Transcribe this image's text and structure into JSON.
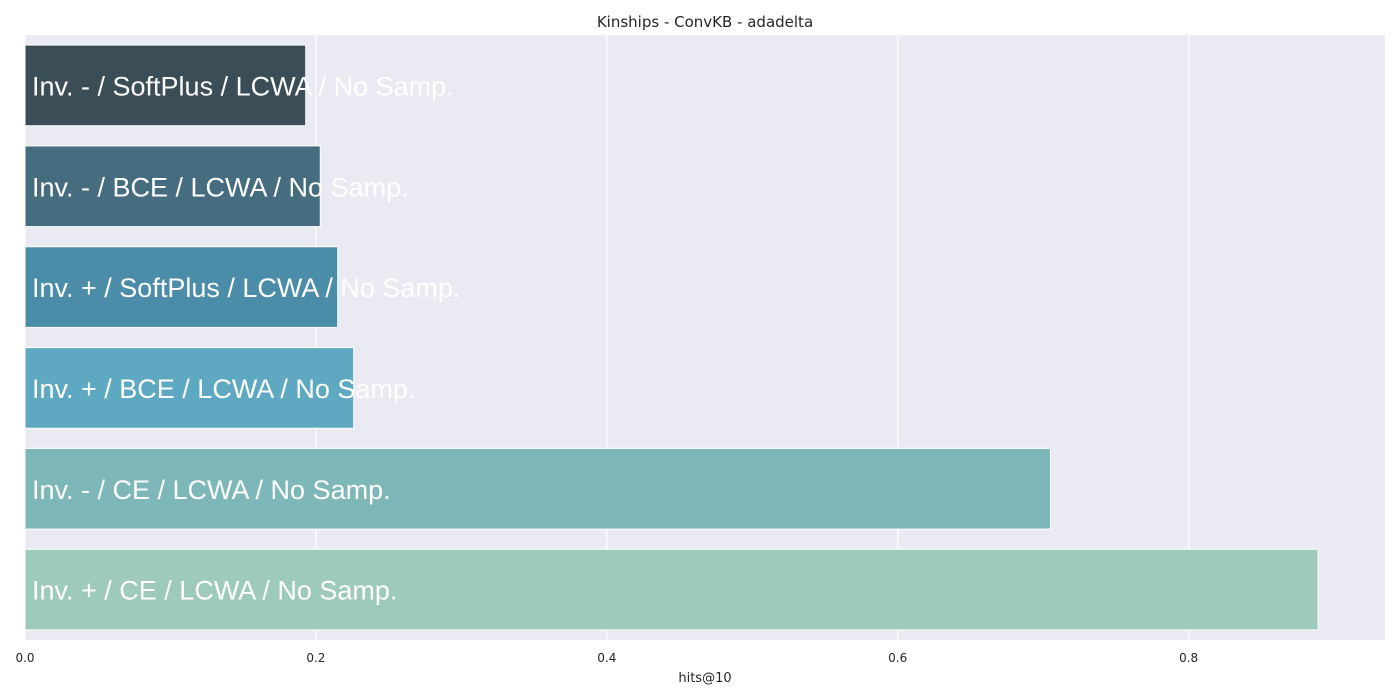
{
  "chart_data": {
    "type": "bar",
    "orientation": "horizontal",
    "title": "Kinships - ConvKB - adadelta",
    "xlabel": "hits@10",
    "ylabel": "",
    "xlim": [
      0,
      0.935
    ],
    "xticks": [
      0.0,
      0.2,
      0.4,
      0.6,
      0.8
    ],
    "xtick_labels": [
      "0.0",
      "0.2",
      "0.4",
      "0.6",
      "0.8"
    ],
    "grid": true,
    "legend": "none",
    "categories": [
      "Inv. - / SoftPlus / LCWA / No Samp.",
      "Inv. - / BCE / LCWA / No Samp.",
      "Inv. + / SoftPlus / LCWA / No Samp.",
      "Inv. + / BCE / LCWA / No Samp.",
      "Inv. - / CE / LCWA / No Samp.",
      "Inv. + / CE / LCWA / No Samp."
    ],
    "values": [
      0.193,
      0.203,
      0.215,
      0.226,
      0.705,
      0.889
    ],
    "colors": [
      "#3b4d56",
      "#456c7f",
      "#4b8ca8",
      "#5ea8c1",
      "#7eb7b8",
      "#9ecabb"
    ],
    "background": "#eaeaf2"
  }
}
